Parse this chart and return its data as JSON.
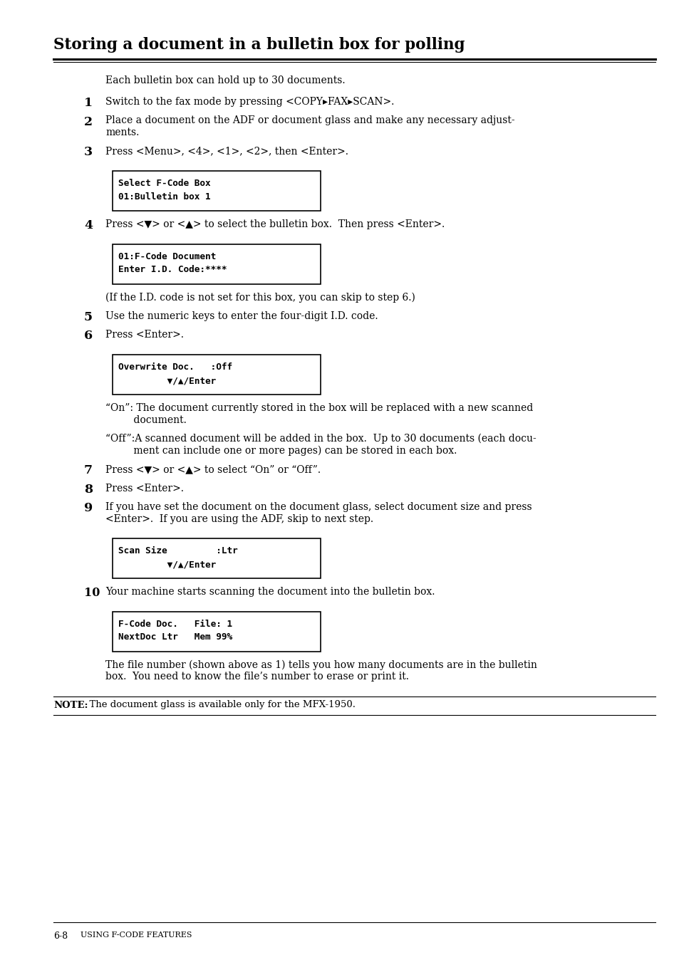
{
  "title": "Storing a document in a bulletin box for polling",
  "bg_color": "#ffffff",
  "intro_text": "Each bulletin box can hold up to 30 documents.",
  "steps": [
    {
      "num": "1",
      "text": "Switch to the fax mode by pressing <COPY▸FAX▸SCAN>.",
      "has_box": false
    },
    {
      "num": "2",
      "text": "Place a document on the ADF or document glass and make any necessary adjust-\nments.",
      "has_box": false
    },
    {
      "num": "3",
      "text": "Press <Menu>, <4>, <1>, <2>, then <Enter>.",
      "has_box": true,
      "box_lines": [
        "Select F-Code Box",
        "01:Bulletin box 1"
      ]
    },
    {
      "num": "4",
      "text": "Press <▼> or <▲> to select the bulletin box.  Then press <Enter>.",
      "has_box": true,
      "box_lines": [
        "01:F-Code Document",
        "Enter I.D. Code:****"
      ]
    },
    {
      "num": "",
      "text": "(If the I.D. code is not set for this box, you can skip to step 6.)",
      "has_box": false,
      "indent": true
    },
    {
      "num": "5",
      "text": "Use the numeric keys to enter the four-digit I.D. code.",
      "has_box": false
    },
    {
      "num": "6",
      "text": "Press <Enter>.",
      "has_box": true,
      "box_lines": [
        "Overwrite Doc.   :Off",
        "         ▼/▲/Enter"
      ]
    },
    {
      "num": "",
      "text": "“On”: The document currently stored in the box will be replaced with a new scanned\n         document.",
      "has_box": false,
      "indent": true
    },
    {
      "num": "",
      "text": "“Off”:A scanned document will be added in the box.  Up to 30 documents (each docu-\n         ment can include one or more pages) can be stored in each box.",
      "has_box": false,
      "indent": true
    },
    {
      "num": "7",
      "text": "Press <▼> or <▲> to select “On” or “Off”.",
      "has_box": false
    },
    {
      "num": "8",
      "text": "Press <Enter>.",
      "has_box": false
    },
    {
      "num": "9",
      "text": "If you have set the document on the document glass, select document size and press\n<Enter>.  If you are using the ADF, skip to next step.",
      "has_box": true,
      "box_lines": [
        "Scan Size         :Ltr",
        "         ▼/▲/Enter"
      ]
    },
    {
      "num": "10",
      "text": "Your machine starts scanning the document into the bulletin box.",
      "has_box": true,
      "box_lines": [
        "F-Code Doc.   File: 1",
        "NextDoc Ltr   Mem 99%"
      ]
    },
    {
      "num": "",
      "text": "The file number (shown above as 1) tells you how many documents are in the bulletin\nbox.  You need to know the file’s number to erase or print it.",
      "has_box": false,
      "indent": true
    }
  ],
  "note_label": "NOTE:",
  "note_text": "  The document glass is available only for the MFX-1950.",
  "footer_left": "6-8",
  "footer_right": "Using F-code features"
}
